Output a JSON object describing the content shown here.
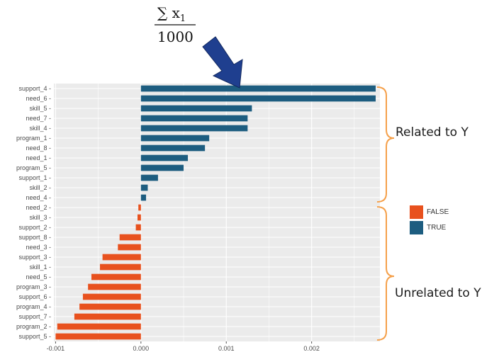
{
  "chart_data": {
    "type": "bar",
    "orientation": "horizontal",
    "categories": [
      "support_4",
      "need_6",
      "skill_5",
      "need_7",
      "skill_4",
      "program_1",
      "need_8",
      "need_1",
      "program_5",
      "support_1",
      "skill_2",
      "need_4",
      "need_2",
      "skill_3",
      "support_2",
      "support_8",
      "need_3",
      "support_3",
      "skill_1",
      "need_5",
      "program_3",
      "support_6",
      "program_4",
      "support_7",
      "program_2",
      "support_5"
    ],
    "values": [
      0.00275,
      0.00275,
      0.0013,
      0.00125,
      0.00125,
      0.0008,
      0.00075,
      0.00055,
      0.0005,
      0.0002,
      8e-05,
      6e-05,
      -3e-05,
      -4e-05,
      -6e-05,
      -0.00025,
      -0.00027,
      -0.00045,
      -0.00048,
      -0.00058,
      -0.00062,
      -0.00068,
      -0.00072,
      -0.00078,
      -0.00098,
      -0.001
    ],
    "positive": [
      true,
      true,
      true,
      true,
      true,
      true,
      true,
      true,
      true,
      true,
      true,
      true,
      false,
      false,
      false,
      false,
      false,
      false,
      false,
      false,
      false,
      false,
      false,
      false,
      false,
      false
    ],
    "xlim": [
      -0.00102,
      0.0028
    ],
    "x_ticks": [
      -0.001,
      0.0,
      0.001,
      0.002
    ],
    "x_tick_labels": [
      "-0.001",
      "0.000",
      "0.001",
      "0.002"
    ],
    "grid": true,
    "legend": {
      "position": "right",
      "entries": [
        {
          "label": "FALSE",
          "color": "#e8511e"
        },
        {
          "label": "TRUE",
          "color": "#1d5d80"
        }
      ]
    },
    "annotations": {
      "formula_numerator": "∑ x",
      "formula_subscript": "1",
      "formula_denominator": "1000",
      "related_label": "Related to Y",
      "unrelated_label": "Unrelated to Y"
    }
  },
  "colors": {
    "true_bar": "#1d5d80",
    "false_bar": "#e8511e",
    "panel_bg": "#ebebeb",
    "grid": "#ffffff",
    "brace": "#f5a04a",
    "arrow": "#1f3f8f"
  }
}
